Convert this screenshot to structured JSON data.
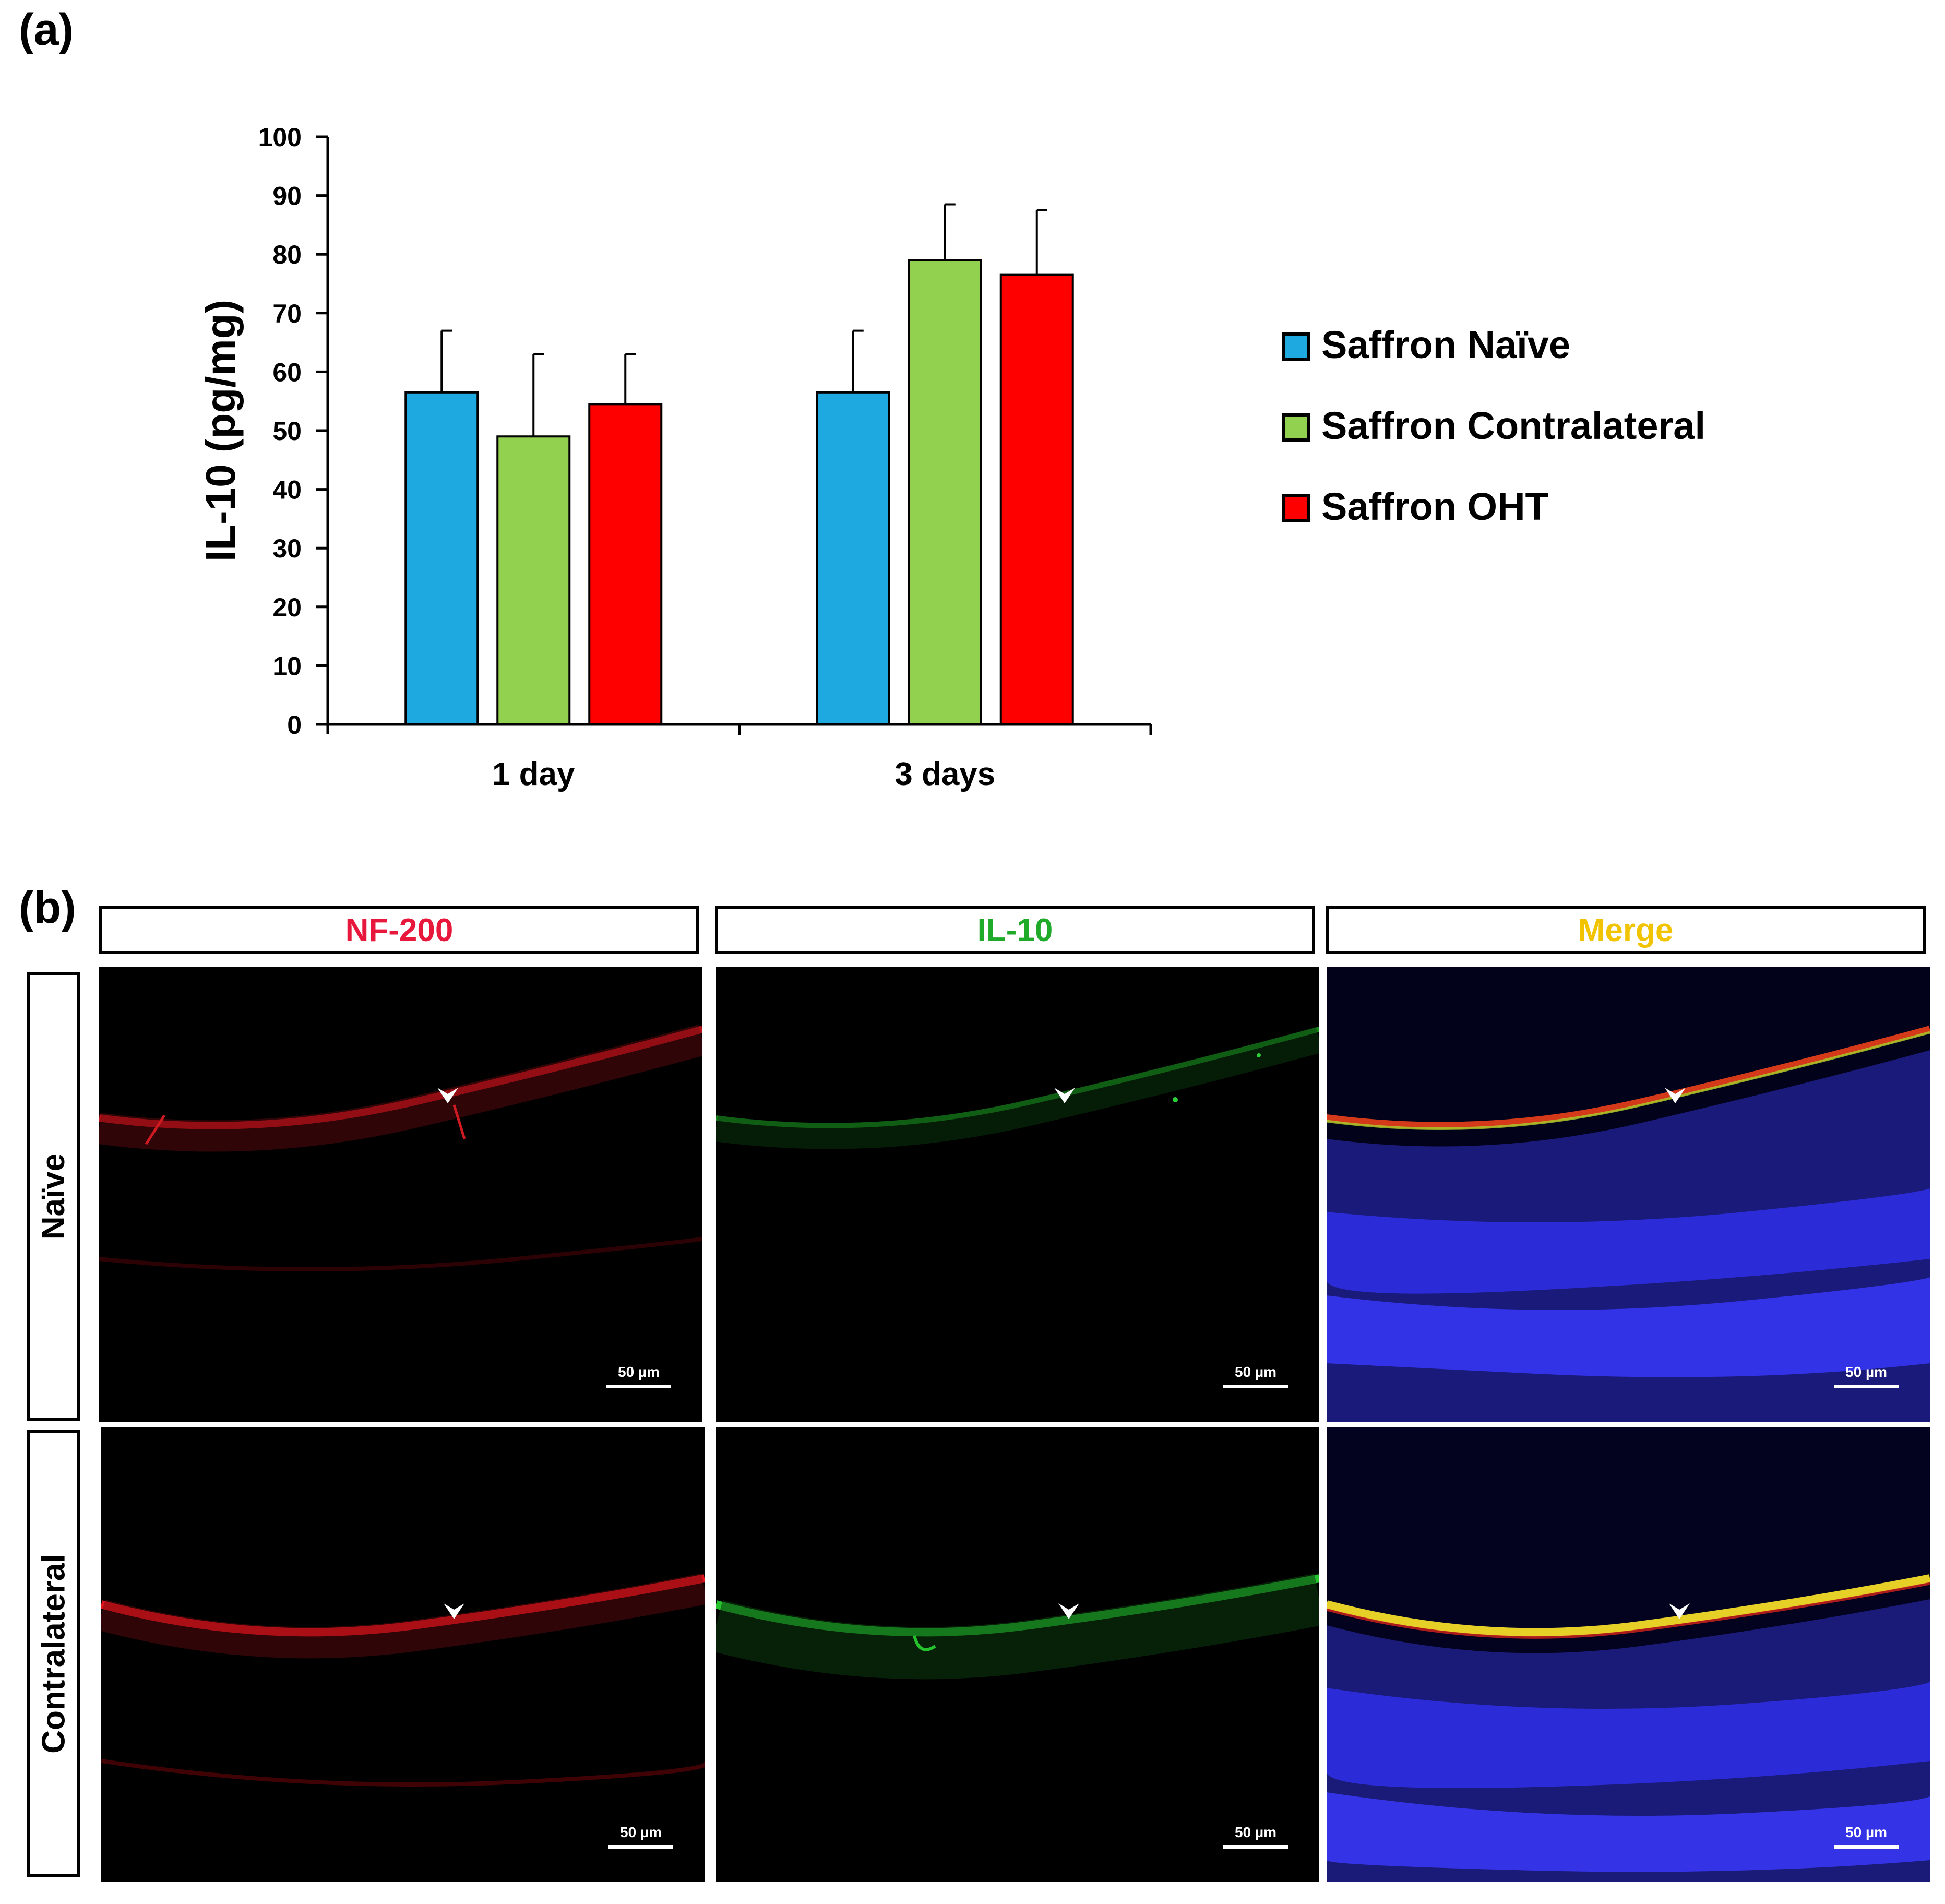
{
  "panel_labels": {
    "a": "(a)",
    "b": "(b)"
  },
  "chart_data": {
    "type": "bar",
    "title": "",
    "ylabel": "IL-10 (pg/mg)",
    "xlabel": "",
    "ylim": [
      0,
      100
    ],
    "yticks": [
      0,
      10,
      20,
      30,
      40,
      50,
      60,
      70,
      80,
      90,
      100
    ],
    "categories": [
      "1 day",
      "3 days"
    ],
    "legend_position": "right",
    "series": [
      {
        "name": "Saffron Naïve",
        "color": "#1ea9e1",
        "values": [
          56.5,
          56.5
        ],
        "errors": [
          10.5,
          10.5
        ]
      },
      {
        "name": "Saffron Contralateral",
        "color": "#92d050",
        "values": [
          49,
          79
        ],
        "errors": [
          14,
          9.5
        ]
      },
      {
        "name": "Saffron OHT",
        "color": "#ff0000",
        "values": [
          54.5,
          76.5
        ],
        "errors": [
          8.5,
          11
        ]
      }
    ]
  },
  "micrograph_panel": {
    "columns": [
      {
        "label": "NF-200",
        "color": "#e8173c"
      },
      {
        "label": "IL-10",
        "color": "#1faa2a"
      },
      {
        "label": "Merge",
        "color": "#f2c400"
      }
    ],
    "rows": [
      "Naïve",
      "Contralateral"
    ],
    "scale_bar_label": "50 µm"
  }
}
